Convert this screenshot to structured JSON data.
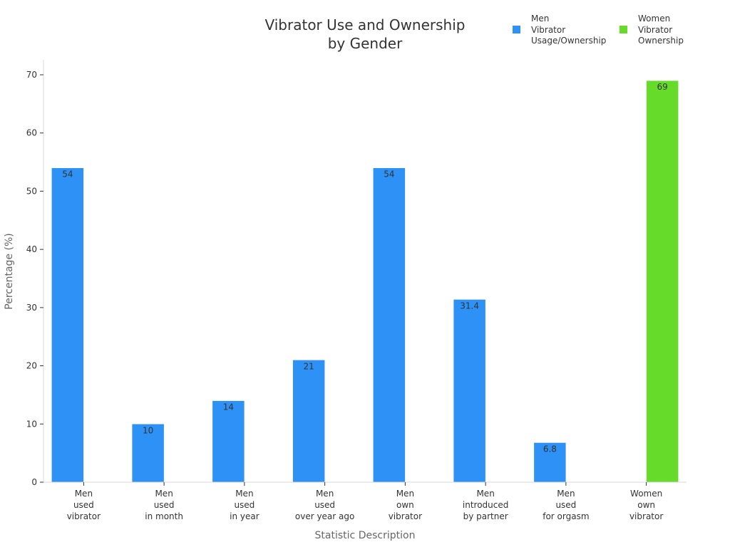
{
  "chart_data": {
    "type": "bar",
    "title": [
      "Vibrator Use and Ownership",
      "by Gender"
    ],
    "xlabel": "Statistic Description",
    "ylabel": "Percentage (%)",
    "ylim": [
      0,
      72
    ],
    "yticks": [
      0,
      10,
      20,
      30,
      40,
      50,
      60,
      70
    ],
    "legend_position": "top-right",
    "categories": [
      [
        "Men",
        "used",
        "vibrator"
      ],
      [
        "Men",
        "used",
        "in month"
      ],
      [
        "Men",
        "used",
        "in year"
      ],
      [
        "Men",
        "used",
        "over year ago"
      ],
      [
        "Men",
        "own",
        "vibrator"
      ],
      [
        "Men",
        "introduced",
        "by partner"
      ],
      [
        "Men",
        "used",
        "for orgasm"
      ],
      [
        "Women",
        "own",
        "vibrator"
      ]
    ],
    "series": [
      {
        "name": [
          "Men",
          "Vibrator",
          "Usage/Ownership"
        ],
        "color": "#2e91f5",
        "values": [
          54,
          10,
          14,
          21,
          54,
          31.4,
          6.8,
          null
        ]
      },
      {
        "name": [
          "Women",
          "Vibrator",
          "Ownership"
        ],
        "color": "#66db2a",
        "values": [
          null,
          null,
          null,
          null,
          null,
          null,
          null,
          69
        ]
      }
    ]
  }
}
